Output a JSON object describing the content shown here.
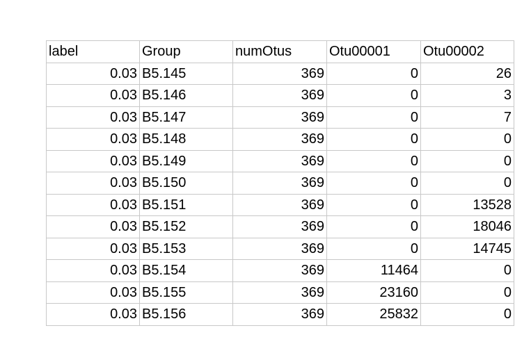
{
  "table": {
    "columns": [
      "label",
      "Group",
      "numOtus",
      "Otu00001",
      "Otu00002"
    ],
    "rows": [
      [
        "0.03",
        "B5.145",
        "369",
        "0",
        "26"
      ],
      [
        "0.03",
        "B5.146",
        "369",
        "0",
        "3"
      ],
      [
        "0.03",
        "B5.147",
        "369",
        "0",
        "7"
      ],
      [
        "0.03",
        "B5.148",
        "369",
        "0",
        "0"
      ],
      [
        "0.03",
        "B5.149",
        "369",
        "0",
        "0"
      ],
      [
        "0.03",
        "B5.150",
        "369",
        "0",
        "0"
      ],
      [
        "0.03",
        "B5.151",
        "369",
        "0",
        "13528"
      ],
      [
        "0.03",
        "B5.152",
        "369",
        "0",
        "18046"
      ],
      [
        "0.03",
        "B5.153",
        "369",
        "0",
        "14745"
      ],
      [
        "0.03",
        "B5.154",
        "369",
        "11464",
        "0"
      ],
      [
        "0.03",
        "B5.155",
        "369",
        "23160",
        "0"
      ],
      [
        "0.03",
        "B5.156",
        "369",
        "25832",
        "0"
      ]
    ]
  }
}
